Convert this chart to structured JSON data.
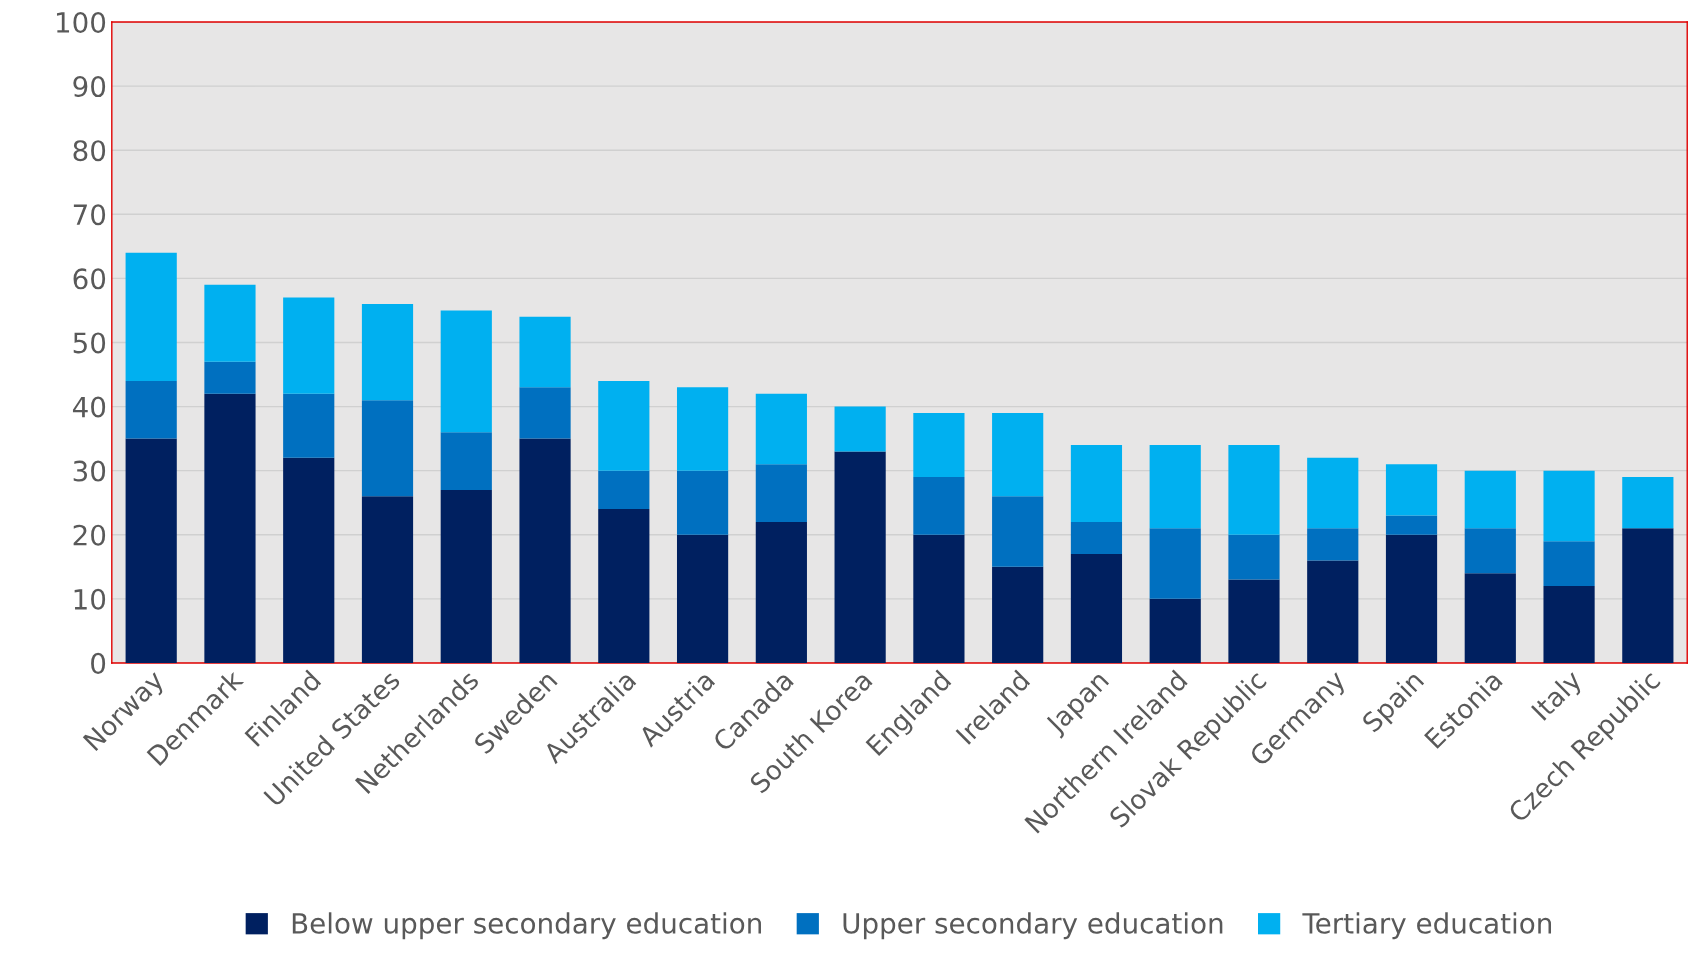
{
  "chart_data": {
    "type": "bar",
    "stacked": true,
    "categories": [
      "Norway",
      "Denmark",
      "Finland",
      "United States",
      "Netherlands",
      "Sweden",
      "Australia",
      "Austria",
      "Canada",
      "South Korea",
      "England",
      "Ireland",
      "Japan",
      "Northern Ireland",
      "Slovak Republic",
      "Germany",
      "Spain",
      "Estonia",
      "Italy",
      "Czech Republic"
    ],
    "series": [
      {
        "name": "Below upper secondary education",
        "color": "#002060",
        "values": [
          35,
          42,
          32,
          26,
          27,
          35,
          24,
          20,
          22,
          33,
          20,
          15,
          17,
          10,
          13,
          16,
          20,
          14,
          12,
          21
        ]
      },
      {
        "name": "Upper secondary education",
        "color": "#0070c0",
        "values": [
          9,
          5,
          10,
          15,
          9,
          8,
          6,
          10,
          9,
          0,
          9,
          11,
          5,
          11,
          7,
          5,
          3,
          7,
          7,
          0
        ]
      },
      {
        "name": "Tertiary education",
        "color": "#00b0f0",
        "values": [
          20,
          12,
          15,
          15,
          19,
          11,
          14,
          13,
          11,
          7,
          10,
          13,
          12,
          13,
          14,
          11,
          8,
          9,
          11,
          8
        ]
      }
    ],
    "ylim": [
      0,
      100
    ],
    "yticks": [
      0,
      10,
      20,
      30,
      40,
      50,
      60,
      70,
      80,
      90,
      100
    ],
    "grid": "y",
    "legend": "bottom"
  }
}
